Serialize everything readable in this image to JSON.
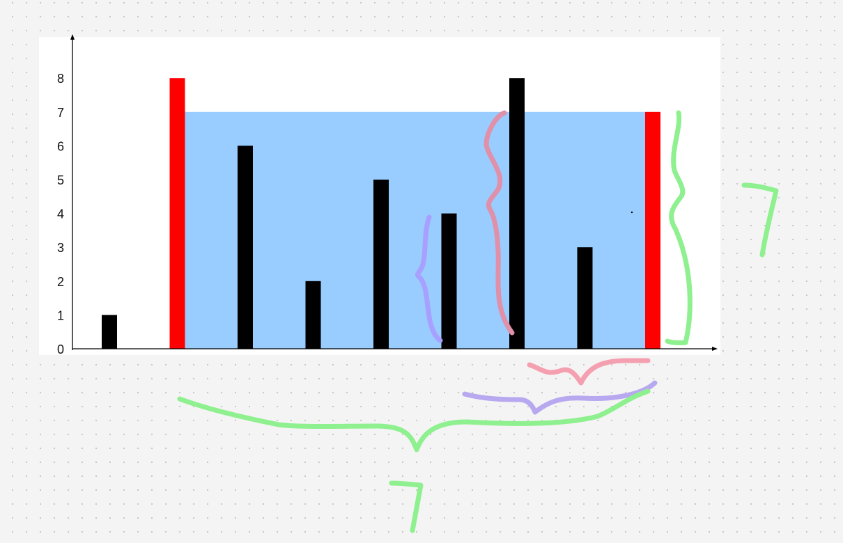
{
  "chart_data": {
    "type": "bar",
    "categories": [
      "",
      "",
      "",
      "",
      "",
      "",
      "",
      "",
      ""
    ],
    "values": [
      1,
      8,
      6,
      2,
      5,
      4,
      8,
      3,
      7
    ],
    "bar_colors": [
      "#000000",
      "#ff0000",
      "#000000",
      "#000000",
      "#000000",
      "#000000",
      "#000000",
      "#000000",
      "#ff0000"
    ],
    "ylim": [
      0,
      9
    ],
    "yticks": [
      "0",
      "1",
      "2",
      "3",
      "4",
      "5",
      "6",
      "7",
      "8"
    ],
    "water": {
      "from_bar": 1,
      "to_bar": 8,
      "level": 7,
      "color": "#99ccff"
    },
    "title": "",
    "xlabel": "",
    "ylabel": "",
    "grid": false
  },
  "annotations": {
    "width_label": "7",
    "height_label": "7",
    "colors": {
      "green": "#8ef08e",
      "pink": "#f5a0b0",
      "pink_dark": "#e090a8",
      "purple": "#a8a0ff",
      "purple_light": "#b8a8f0"
    }
  }
}
